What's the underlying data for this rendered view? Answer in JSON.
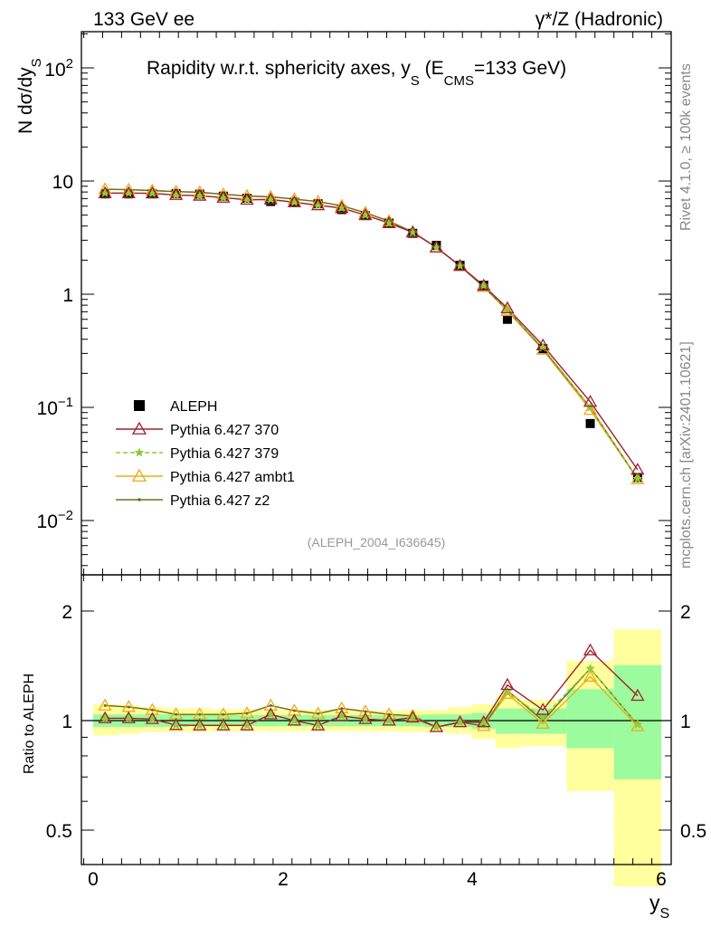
{
  "header": {
    "left": "133 GeV ee",
    "right": "γ*/Z (Hadronic)"
  },
  "title": {
    "main": "Rapidity w.r.t. sphericity axes, y",
    "sub1": "S",
    "mid": " (E",
    "sub2": "CMS",
    "end": "=133 GeV)"
  },
  "side": {
    "rivet": "Rivet 4.1.0, ≥ 100k events",
    "mcplots": "mcplots.cern.ch [arXiv:2401.10621]"
  },
  "analysis_id": "(ALEPH_2004_I636645)",
  "axes": {
    "ylabel_main": "N  dσ/dy",
    "ylabel_sub": "S",
    "ylabel_ratio": "Ratio to ALEPH",
    "xlabel": "y",
    "xlabel_sub": "S",
    "xticks": [
      "0",
      "2",
      "4",
      "6"
    ],
    "yticks_main": [
      {
        "base": "10",
        "exp": "2"
      },
      {
        "base": "10",
        "exp": ""
      },
      {
        "base": "1",
        "exp": ""
      },
      {
        "base": "10",
        "exp": "−1"
      },
      {
        "base": "10",
        "exp": "−2"
      }
    ],
    "yticks_ratio": [
      "2",
      "1",
      "0.5"
    ]
  },
  "legend": [
    {
      "label": "ALEPH",
      "color": "#000000",
      "marker": "square"
    },
    {
      "label": "Pythia 6.427 370",
      "color": "#a0202d",
      "marker": "triangle"
    },
    {
      "label": "Pythia 6.427 379",
      "color": "#8ccc3c",
      "marker": "star"
    },
    {
      "label": "Pythia 6.427 ambt1",
      "color": "#f0a818",
      "marker": "triangle"
    },
    {
      "label": "Pythia 6.427 z2",
      "color": "#6e6e1e",
      "marker": "dot"
    }
  ],
  "chart_data": {
    "type": "scatter",
    "title": "Rapidity w.r.t. sphericity axes, y_S (E_CMS=133 GeV)",
    "xlabel": "y_S",
    "ylabel": "N dσ/dy_S",
    "xlim": [
      -0.2,
      6.1
    ],
    "ylim": [
      0.0035,
      200
    ],
    "yscale": "log",
    "ratio_ylim": [
      0.35,
      2.3
    ],
    "x": [
      0.125,
      0.375,
      0.625,
      0.875,
      1.125,
      1.375,
      1.625,
      1.875,
      2.125,
      2.375,
      2.625,
      2.875,
      3.125,
      3.375,
      3.625,
      3.875,
      4.125,
      4.375,
      4.75,
      5.25,
      5.75
    ],
    "band_edges": [
      0,
      0.25,
      0.5,
      0.75,
      1.0,
      1.25,
      1.5,
      1.75,
      2.0,
      2.25,
      2.5,
      2.75,
      3.0,
      3.25,
      3.5,
      3.75,
      4.0,
      4.25,
      4.5,
      5.0,
      5.5,
      6.0
    ],
    "data": {
      "name": "ALEPH",
      "values": [
        7.7,
        7.7,
        7.7,
        7.75,
        7.65,
        7.35,
        7.05,
        6.6,
        6.5,
        6.3,
        5.6,
        4.95,
        4.25,
        3.45,
        2.7,
        1.8,
        1.2,
        0.6,
        0.33,
        0.072,
        0.024
      ],
      "stat_band": [
        [
          0.96,
          1.04
        ],
        [
          0.96,
          1.04
        ],
        [
          0.96,
          1.04
        ],
        [
          0.96,
          1.04
        ],
        [
          0.965,
          1.035
        ],
        [
          0.965,
          1.035
        ],
        [
          0.965,
          1.035
        ],
        [
          0.965,
          1.035
        ],
        [
          0.965,
          1.035
        ],
        [
          0.965,
          1.035
        ],
        [
          0.965,
          1.035
        ],
        [
          0.965,
          1.035
        ],
        [
          0.965,
          1.035
        ],
        [
          0.965,
          1.035
        ],
        [
          0.96,
          1.04
        ],
        [
          0.96,
          1.04
        ],
        [
          0.95,
          1.05
        ],
        [
          0.92,
          1.08
        ],
        [
          0.92,
          1.08
        ],
        [
          0.84,
          1.22
        ],
        [
          0.69,
          1.42
        ]
      ],
      "total_band": [
        [
          0.91,
          1.11
        ],
        [
          0.92,
          1.1
        ],
        [
          0.93,
          1.09
        ],
        [
          0.93,
          1.08
        ],
        [
          0.93,
          1.08
        ],
        [
          0.935,
          1.075
        ],
        [
          0.935,
          1.075
        ],
        [
          0.935,
          1.075
        ],
        [
          0.935,
          1.07
        ],
        [
          0.935,
          1.07
        ],
        [
          0.935,
          1.07
        ],
        [
          0.935,
          1.065
        ],
        [
          0.935,
          1.065
        ],
        [
          0.93,
          1.07
        ],
        [
          0.93,
          1.07
        ],
        [
          0.92,
          1.09
        ],
        [
          0.89,
          1.11
        ],
        [
          0.84,
          1.17
        ],
        [
          0.85,
          1.14
        ],
        [
          0.64,
          1.46
        ],
        [
          0.35,
          1.78
        ]
      ]
    },
    "series": [
      {
        "name": "Pythia 6.427 370",
        "values": [
          7.82,
          7.82,
          7.79,
          7.53,
          7.42,
          7.13,
          6.84,
          6.87,
          6.5,
          6.11,
          5.77,
          5.0,
          4.25,
          3.52,
          2.59,
          1.78,
          1.19,
          0.752,
          0.353,
          0.112,
          0.0281
        ],
        "ratio": [
          1.015,
          1.015,
          1.01,
          0.972,
          0.97,
          0.97,
          0.97,
          1.04,
          1.0,
          0.97,
          1.03,
          1.01,
          1.0,
          1.02,
          0.96,
          0.99,
          0.99,
          1.253,
          1.07,
          1.56,
          1.17
        ]
      },
      {
        "name": "Pythia 6.427 379",
        "values": [
          7.82,
          7.82,
          7.79,
          7.53,
          7.42,
          7.13,
          6.84,
          6.87,
          6.5,
          6.11,
          5.77,
          5.0,
          4.25,
          3.52,
          2.59,
          1.78,
          1.19,
          0.72,
          0.337,
          0.1,
          0.0234
        ],
        "ratio": [
          1.015,
          1.015,
          1.01,
          0.972,
          0.97,
          0.97,
          0.97,
          1.04,
          1.0,
          0.97,
          1.03,
          1.01,
          1.0,
          1.02,
          0.96,
          0.99,
          0.99,
          1.2,
          1.02,
          1.39,
          0.975
        ]
      },
      {
        "name": "Pythia 6.427 ambt1",
        "values": [
          8.47,
          8.39,
          8.24,
          8.06,
          7.96,
          7.65,
          7.38,
          7.26,
          6.92,
          6.58,
          6.05,
          5.25,
          4.42,
          3.55,
          2.59,
          1.78,
          1.16,
          0.71,
          0.323,
          0.095,
          0.0232
        ],
        "ratio": [
          1.1,
          1.09,
          1.07,
          1.04,
          1.04,
          1.04,
          1.047,
          1.1,
          1.065,
          1.045,
          1.08,
          1.06,
          1.04,
          1.03,
          0.96,
          0.99,
          0.967,
          1.185,
          0.98,
          1.32,
          0.965
        ]
      },
      {
        "name": "Pythia 6.427 z2",
        "values": [
          8.47,
          8.39,
          8.24,
          8.06,
          7.96,
          7.65,
          7.38,
          7.26,
          6.92,
          6.58,
          6.05,
          5.25,
          4.42,
          3.55,
          2.59,
          1.78,
          1.16,
          0.726,
          0.33,
          0.1,
          0.0234
        ],
        "ratio": [
          1.1,
          1.09,
          1.07,
          1.04,
          1.04,
          1.04,
          1.047,
          1.1,
          1.065,
          1.045,
          1.08,
          1.06,
          1.04,
          1.03,
          0.96,
          0.99,
          0.967,
          1.21,
          1.0,
          1.39,
          0.975
        ]
      }
    ]
  }
}
